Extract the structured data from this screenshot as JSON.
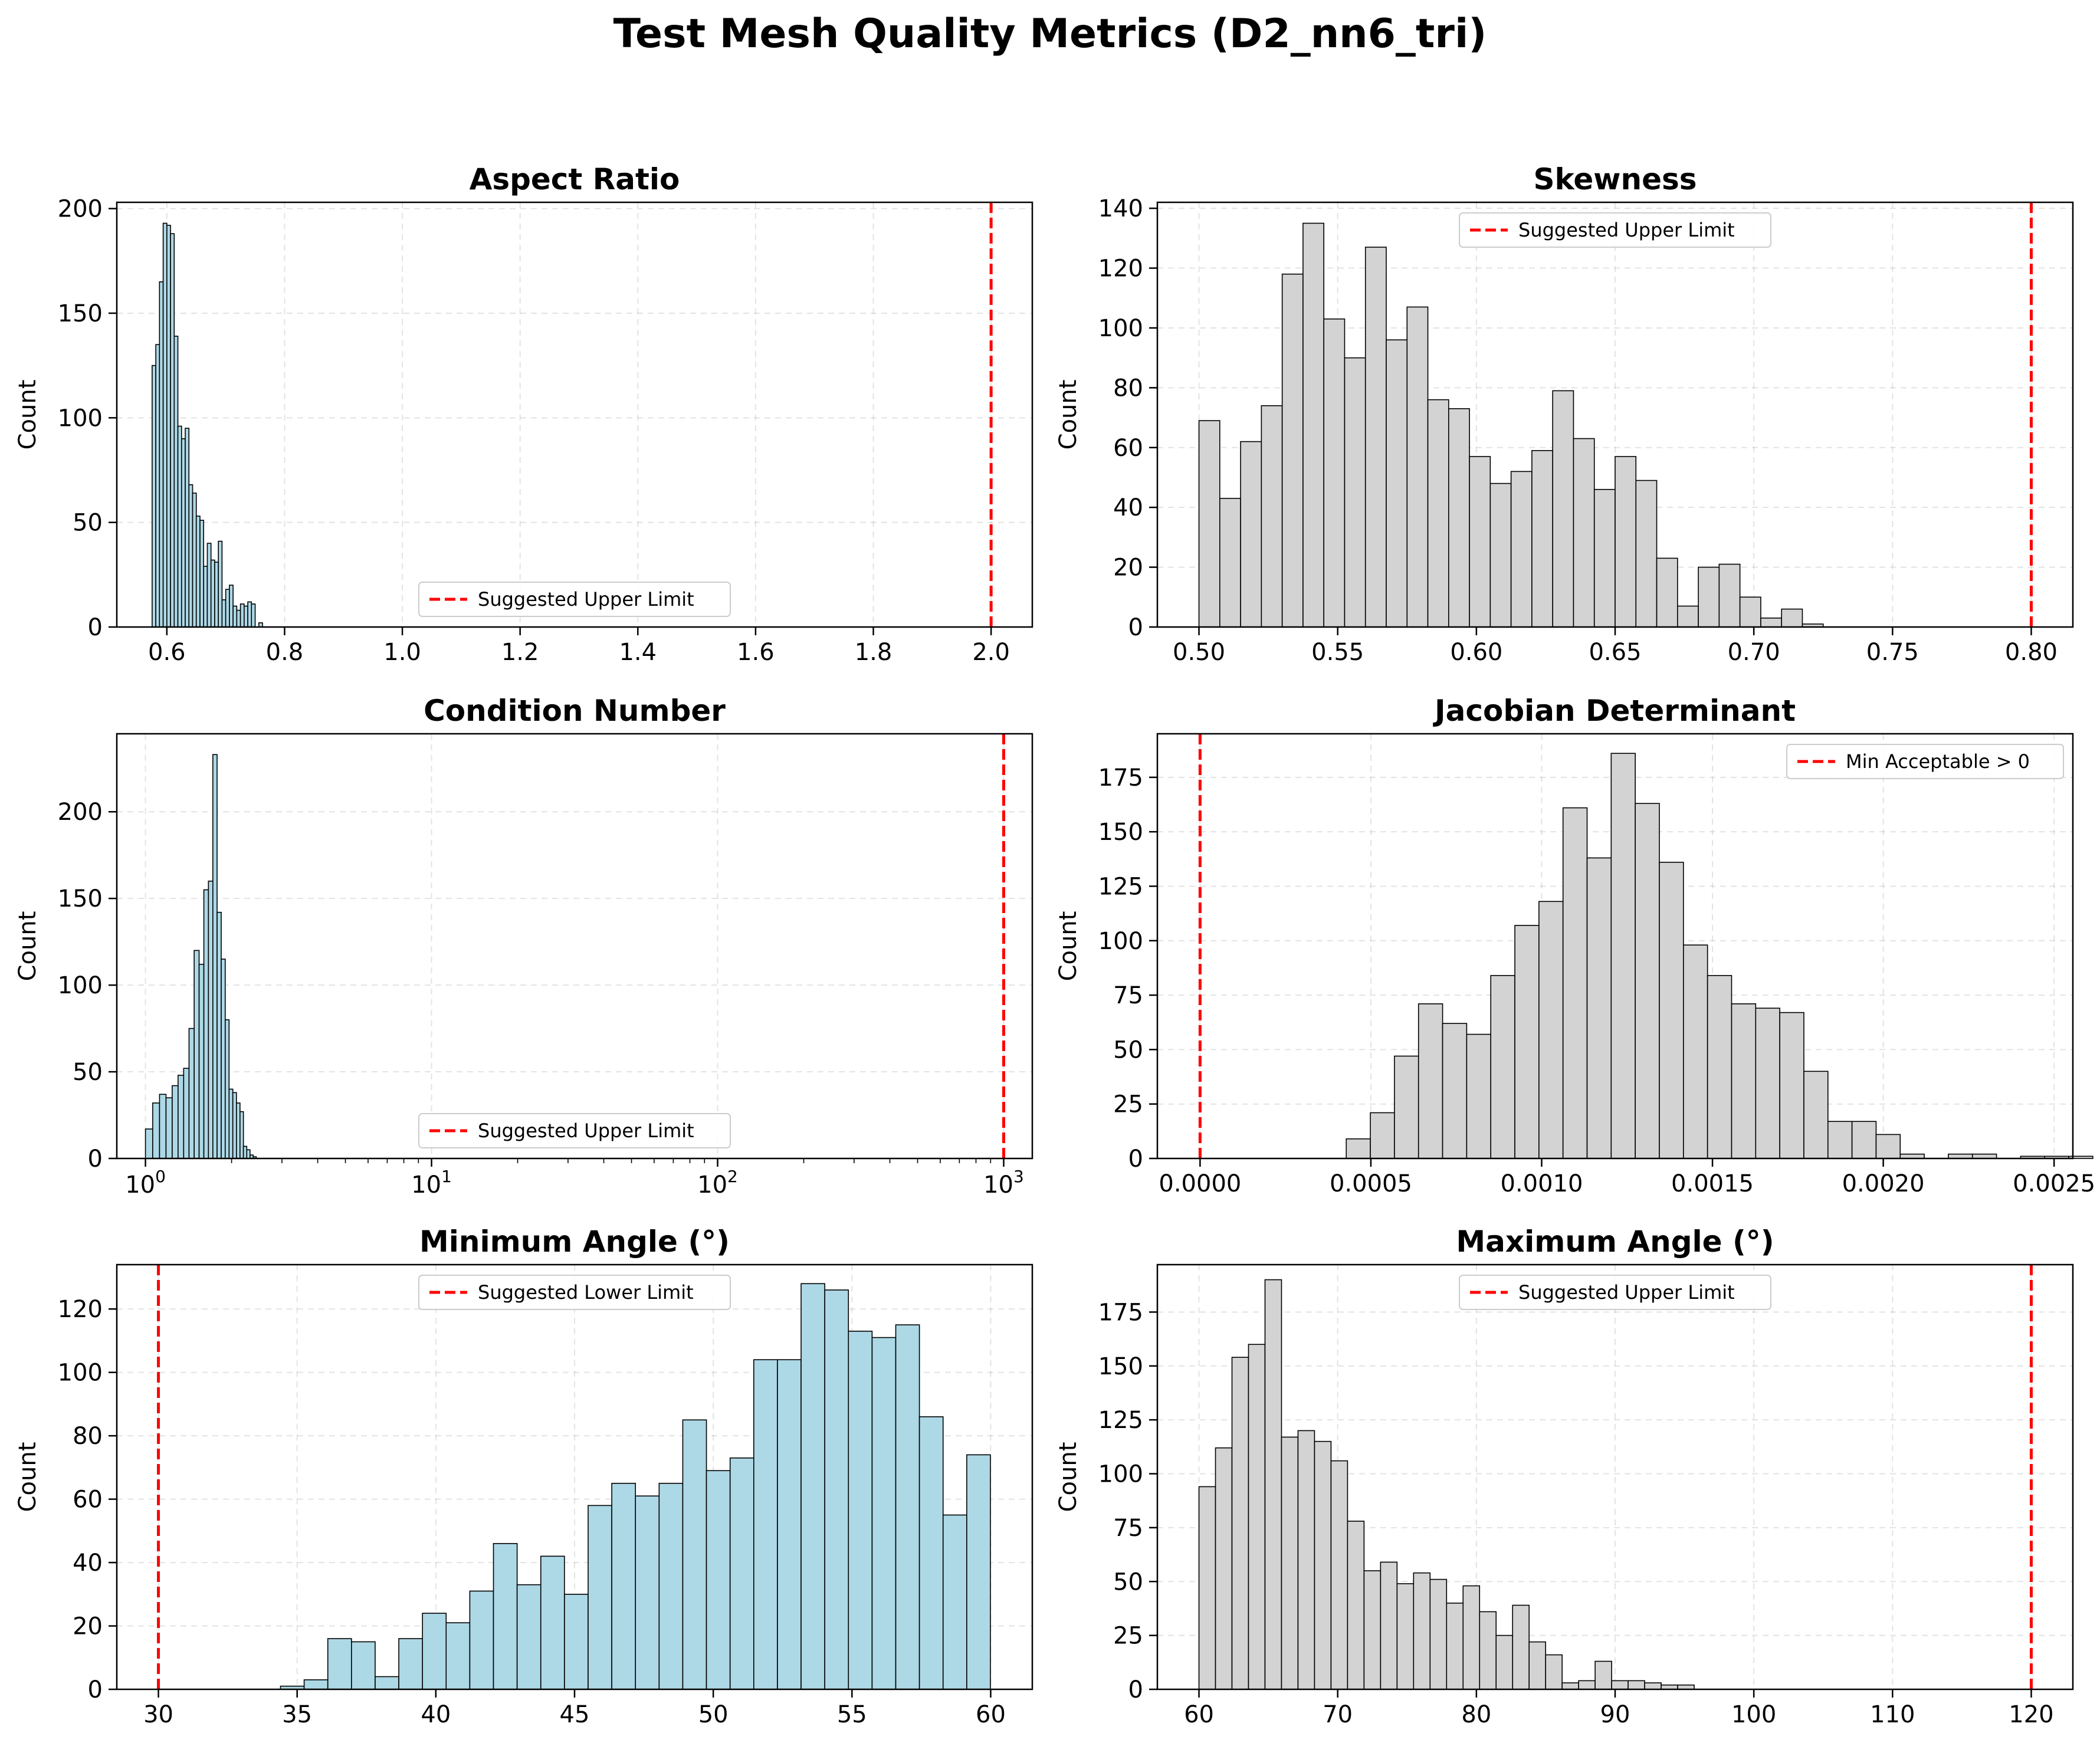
{
  "figure": {
    "title": "Test Mesh Quality Metrics (D2_nn6_tri)"
  },
  "colors": {
    "blue_bar": "#add8e6",
    "gray_bar": "#d3d3d3",
    "edge": "#000000",
    "limit": "#ff0000",
    "grid": "#b0b0b0"
  },
  "chart_data": [
    {
      "type": "bar",
      "title": "Aspect Ratio",
      "xlabel": "",
      "ylabel": "Count",
      "xscale": "linear",
      "xlim": [
        0.515,
        2.07
      ],
      "ylim": [
        0,
        203
      ],
      "xticks": [
        0.6,
        0.8,
        1.0,
        1.2,
        1.4,
        1.6,
        1.8,
        2.0
      ],
      "xtick_labels": [
        "0.6",
        "0.8",
        "1.0",
        "1.2",
        "1.4",
        "1.6",
        "1.8",
        "2.0"
      ],
      "yticks": [
        0,
        50,
        100,
        150,
        200
      ],
      "ytick_labels": [
        "0",
        "50",
        "100",
        "150",
        "200"
      ],
      "grid": true,
      "bar_color": "#add8e6",
      "bins": {
        "start": 0.575,
        "width": 0.00625
      },
      "values": [
        125,
        135,
        165,
        193,
        192,
        188,
        139,
        96,
        90,
        95,
        68,
        64,
        53,
        51,
        29,
        40,
        32,
        31,
        41,
        13,
        18,
        20,
        10,
        8,
        11,
        10,
        12,
        11,
        0,
        2
      ],
      "limit_line": {
        "x": 2.0,
        "label": "Suggested Upper Limit"
      },
      "legend": "lower-center"
    },
    {
      "type": "bar",
      "title": "Skewness",
      "xlabel": "",
      "ylabel": "Count",
      "xscale": "linear",
      "xlim": [
        0.485,
        0.815
      ],
      "ylim": [
        0,
        142
      ],
      "xticks": [
        0.5,
        0.55,
        0.6,
        0.65,
        0.7,
        0.75,
        0.8
      ],
      "xtick_labels": [
        "0.50",
        "0.55",
        "0.60",
        "0.65",
        "0.70",
        "0.75",
        "0.80"
      ],
      "yticks": [
        0,
        20,
        40,
        60,
        80,
        100,
        120,
        140
      ],
      "ytick_labels": [
        "0",
        "20",
        "40",
        "60",
        "80",
        "100",
        "120",
        "140"
      ],
      "grid": true,
      "bar_color": "#d3d3d3",
      "bins": {
        "start": 0.5,
        "width": 0.0075
      },
      "values": [
        69,
        43,
        62,
        74,
        118,
        135,
        103,
        90,
        127,
        96,
        107,
        76,
        73,
        57,
        48,
        52,
        59,
        79,
        63,
        46,
        57,
        49,
        23,
        7,
        20,
        21,
        10,
        3,
        6,
        1
      ],
      "limit_line": {
        "x": 0.8,
        "label": "Suggested Upper Limit"
      },
      "legend": "upper-center"
    },
    {
      "type": "bar",
      "title": "Condition Number",
      "xlabel": "",
      "ylabel": "Count",
      "xscale": "log",
      "xlim": [
        0.794,
        1259
      ],
      "ylim": [
        0,
        245
      ],
      "xticks": [
        1,
        10,
        100,
        1000
      ],
      "xtick_labels": [
        "10^0",
        "10^1",
        "10^2",
        "10^3"
      ],
      "yticks": [
        0,
        50,
        100,
        150,
        200
      ],
      "ytick_labels": [
        "0",
        "50",
        "100",
        "150",
        "200"
      ],
      "grid": true,
      "bar_color": "#add8e6",
      "bins": {
        "start": 1.0,
        "width": 0.06
      },
      "values": [
        17,
        32,
        37,
        35,
        42,
        48,
        52,
        75,
        120,
        112,
        155,
        160,
        233,
        142,
        115,
        80,
        40,
        38,
        32,
        27,
        7,
        5,
        2,
        1
      ],
      "limit_line": {
        "x": 1000,
        "label": "Suggested Upper Limit"
      },
      "legend": "lower-center"
    },
    {
      "type": "bar",
      "title": "Jacobian Determinant",
      "xlabel": "",
      "ylabel": "Count",
      "xscale": "linear",
      "xlim": [
        -0.000125,
        0.002555
      ],
      "ylim": [
        0,
        195
      ],
      "xticks": [
        0,
        0.0005,
        0.001,
        0.0015,
        0.002,
        0.0025
      ],
      "xtick_labels": [
        "0.0000",
        "0.0005",
        "0.0010",
        "0.0015",
        "0.0020",
        "0.0025"
      ],
      "yticks": [
        0,
        25,
        50,
        75,
        100,
        125,
        150,
        175
      ],
      "ytick_labels": [
        "0",
        "25",
        "50",
        "75",
        "100",
        "125",
        "150",
        "175"
      ],
      "grid": true,
      "bar_color": "#d3d3d3",
      "bins": {
        "start": 0.000428,
        "width": 7.05e-05
      },
      "values": [
        9,
        21,
        47,
        71,
        62,
        57,
        84,
        107,
        118,
        161,
        138,
        186,
        163,
        136,
        98,
        84,
        71,
        69,
        67,
        40,
        17,
        17,
        11,
        2,
        0,
        2,
        2,
        0,
        1,
        1,
        1
      ],
      "limit_line": {
        "x": 0,
        "label": "Min Acceptable > 0"
      },
      "legend": "upper-right"
    },
    {
      "type": "bar",
      "title": "Minimum Angle (°)",
      "xlabel": "",
      "ylabel": "Count",
      "xscale": "linear",
      "xlim": [
        28.5,
        61.5
      ],
      "ylim": [
        0,
        134
      ],
      "xticks": [
        30,
        35,
        40,
        45,
        50,
        55,
        60
      ],
      "xtick_labels": [
        "30",
        "35",
        "40",
        "45",
        "50",
        "55",
        "60"
      ],
      "yticks": [
        0,
        20,
        40,
        60,
        80,
        100,
        120
      ],
      "ytick_labels": [
        "0",
        "20",
        "40",
        "60",
        "80",
        "100",
        "120"
      ],
      "grid": true,
      "bar_color": "#add8e6",
      "bins": {
        "start": 34.4,
        "width": 0.853
      },
      "values": [
        1,
        3,
        16,
        15,
        4,
        16,
        24,
        21,
        31,
        46,
        33,
        42,
        30,
        58,
        65,
        61,
        65,
        85,
        69,
        73,
        104,
        104,
        128,
        126,
        113,
        111,
        115,
        86,
        55,
        74
      ],
      "limit_line": {
        "x": 30,
        "label": "Suggested Lower Limit"
      },
      "legend": "upper-center"
    },
    {
      "type": "bar",
      "title": "Maximum Angle (°)",
      "xlabel": "",
      "ylabel": "Count",
      "xscale": "linear",
      "xlim": [
        57,
        123
      ],
      "ylim": [
        0,
        197
      ],
      "xticks": [
        60,
        70,
        80,
        90,
        100,
        110,
        120
      ],
      "xtick_labels": [
        "60",
        "70",
        "80",
        "90",
        "100",
        "110",
        "120"
      ],
      "yticks": [
        0,
        25,
        50,
        75,
        100,
        125,
        150,
        175
      ],
      "ytick_labels": [
        "0",
        "25",
        "50",
        "75",
        "100",
        "125",
        "150",
        "175"
      ],
      "grid": true,
      "bar_color": "#d3d3d3",
      "bins": {
        "start": 60,
        "width": 1.19
      },
      "values": [
        94,
        112,
        154,
        160,
        190,
        117,
        120,
        115,
        106,
        78,
        55,
        59,
        49,
        54,
        51,
        40,
        48,
        36,
        25,
        39,
        22,
        16,
        3,
        4,
        13,
        4,
        4,
        3,
        2,
        2
      ],
      "limit_line": {
        "x": 120,
        "label": "Suggested Upper Limit"
      },
      "legend": "upper-center"
    }
  ]
}
